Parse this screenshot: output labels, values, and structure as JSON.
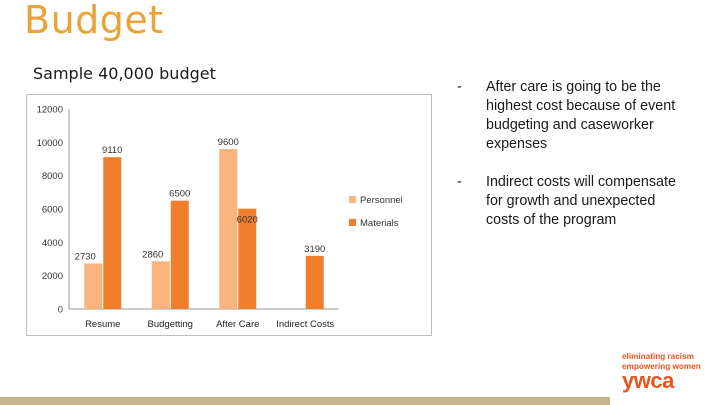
{
  "slide": {
    "title": "Budget",
    "subtitle": "Sample 40,000 budget",
    "bullets": [
      "After care is going to be the highest cost because of event budgeting and caseworker expenses",
      "Indirect costs will compensate for growth and unexpected costs of the program"
    ],
    "bullet_marker": "-"
  },
  "logo": {
    "line1": "eliminating racism",
    "line2": "empowering women",
    "mark": "ywca"
  },
  "colors": {
    "title": "#e8a33a",
    "personnel": "#f9b37c",
    "materials": "#f07f2d",
    "footer_bar": "#c8b48c",
    "logo": "#e8541e"
  },
  "chart_data": {
    "type": "bar",
    "categories": [
      "Resume",
      "Budgetting",
      "After Care",
      "Indirect Costs"
    ],
    "series": [
      {
        "name": "Personnel",
        "values": [
          2730,
          2860,
          9600,
          null
        ]
      },
      {
        "name": "Materials",
        "values": [
          9110,
          6500,
          6020,
          3190
        ]
      }
    ],
    "data_labels": [
      [
        "2730",
        "2860",
        "9600",
        ""
      ],
      [
        "9110",
        "6500",
        "6020",
        "3190"
      ]
    ],
    "y_ticks": [
      "0",
      "2000",
      "4000",
      "6000",
      "8000",
      "10000",
      "12000"
    ],
    "ylim": [
      0,
      12000
    ],
    "grid": false,
    "legend_position": "right"
  }
}
